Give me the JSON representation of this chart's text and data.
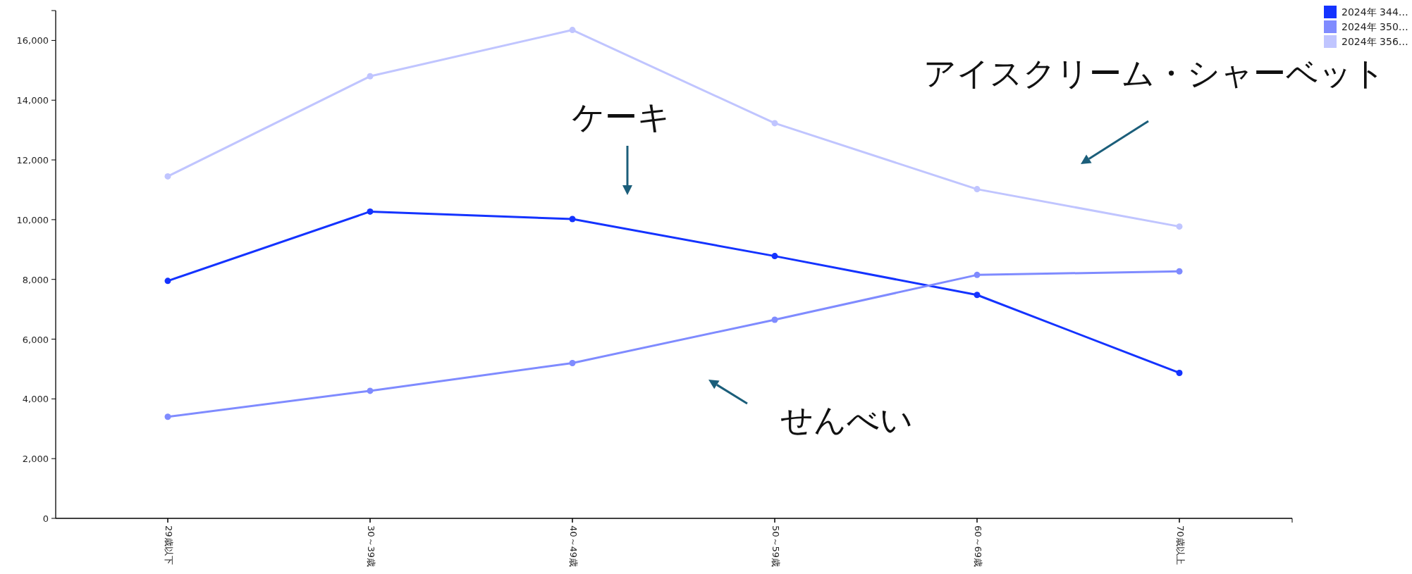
{
  "chart_data": {
    "type": "line",
    "categories": [
      "29歳以下",
      "30～39歳",
      "40～49歳",
      "50～59歳",
      "60～69歳",
      "70歳以上"
    ],
    "series": [
      {
        "name": "2024年 344…",
        "color": "#1433ff",
        "values": [
          7950,
          10270,
          10020,
          8780,
          7480,
          4870
        ]
      },
      {
        "name": "2024年 350…",
        "color": "#7f8bff",
        "values": [
          3400,
          4270,
          5200,
          6650,
          8150,
          8270
        ]
      },
      {
        "name": "2024年 356…",
        "color": "#c0c5ff",
        "values": [
          11450,
          14800,
          16350,
          13230,
          11020,
          9770
        ]
      }
    ],
    "ylim": [
      0,
      17000
    ],
    "yticks": [
      {
        "value": 0,
        "label": "0"
      },
      {
        "value": 2000,
        "label": "2,000"
      },
      {
        "value": 4000,
        "label": "4,000"
      },
      {
        "value": 6000,
        "label": "6,000"
      },
      {
        "value": 8000,
        "label": "8,000"
      },
      {
        "value": 10000,
        "label": "10,000"
      },
      {
        "value": 12000,
        "label": "12,000"
      },
      {
        "value": 14000,
        "label": "14,000"
      },
      {
        "value": 16000,
        "label": "16,000"
      }
    ],
    "annotations": [
      "ケーキ",
      "アイスクリーム・シャーベット",
      "せんべい"
    ],
    "legend": "top right",
    "marker": "circle",
    "grid": false
  }
}
